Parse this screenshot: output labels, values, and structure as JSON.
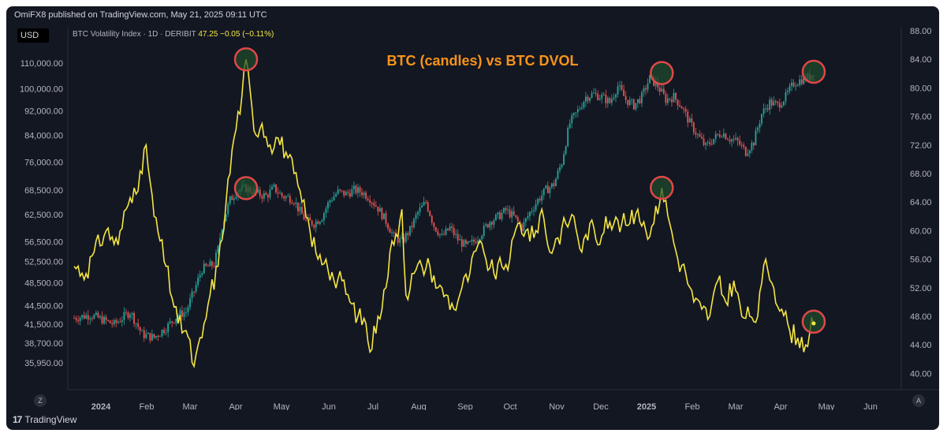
{
  "header": {
    "published": "OmiFX8 published on TradingView.com, May 21, 2025 09:11 UTC",
    "currency": "USD",
    "legend_name": "BTC Volatility Index · 1D · DERIBIT",
    "legend_values": "47.25 −0.05 (−0.11%)"
  },
  "footer": {
    "brand": "TradingView",
    "left_button": "Z",
    "right_button": "A"
  },
  "chart_data": {
    "type": "line",
    "title": "BTC (candles) vs BTC DVOL",
    "left_axis": {
      "ticks": [
        "110,000.00",
        "100,000.00",
        "92,000.00",
        "84,000.00",
        "76,000.00",
        "68,500.00",
        "62,500.00",
        "56,500.00",
        "52,500.00",
        "48,500.00",
        "44,500.00",
        "41,500.00",
        "38,700.00",
        "35,950.00"
      ],
      "scale": "log"
    },
    "right_axis": {
      "ticks": [
        "88.00",
        "84.00",
        "80.00",
        "76.00",
        "72.00",
        "68.00",
        "64.00",
        "60.00",
        "56.00",
        "52.00",
        "48.00",
        "44.00",
        "40.00"
      ],
      "range": [
        38,
        88
      ]
    },
    "x_ticks": [
      "2024",
      "Feb",
      "Mar",
      "Apr",
      "May",
      "Jun",
      "Jul",
      "Aug",
      "Sep",
      "Oct",
      "Nov",
      "Dec",
      "2025",
      "Feb",
      "Mar",
      "Apr",
      "May",
      "Jun"
    ],
    "series": [
      {
        "name": "BTC",
        "kind": "candles",
        "colors": {
          "up": "#26a69a",
          "down": "#ef5350"
        },
        "points": [
          [
            0,
            42500
          ],
          [
            4,
            43000
          ],
          [
            8,
            42000
          ],
          [
            10,
            41500
          ],
          [
            14,
            43500
          ],
          [
            17,
            40000
          ],
          [
            20,
            39500
          ],
          [
            23,
            41000
          ],
          [
            26,
            43000
          ],
          [
            28,
            43500
          ],
          [
            30,
            47000
          ],
          [
            32,
            51000
          ],
          [
            35,
            52000
          ],
          [
            36,
            55000
          ],
          [
            37,
            60000
          ],
          [
            39,
            66000
          ],
          [
            41,
            68500
          ],
          [
            43,
            69000
          ],
          [
            46,
            67500
          ],
          [
            48,
            67000
          ],
          [
            50,
            69000
          ],
          [
            52,
            67000
          ],
          [
            54,
            66500
          ],
          [
            55,
            66000
          ],
          [
            56,
            64000
          ],
          [
            58,
            61000
          ],
          [
            60,
            60500
          ],
          [
            62,
            62000
          ],
          [
            64,
            66000
          ],
          [
            66,
            68000
          ],
          [
            68,
            67500
          ],
          [
            70,
            68500
          ],
          [
            72,
            68000
          ],
          [
            74,
            66500
          ],
          [
            76,
            64000
          ],
          [
            78,
            61000
          ],
          [
            80,
            57500
          ],
          [
            82,
            56500
          ],
          [
            84,
            59000
          ],
          [
            86,
            63000
          ],
          [
            88,
            65500
          ],
          [
            90,
            60000
          ],
          [
            92,
            57500
          ],
          [
            94,
            59500
          ],
          [
            96,
            57000
          ],
          [
            98,
            55500
          ],
          [
            100,
            56500
          ],
          [
            102,
            58500
          ],
          [
            104,
            61000
          ],
          [
            106,
            62000
          ],
          [
            108,
            63500
          ],
          [
            110,
            62000
          ],
          [
            112,
            59500
          ],
          [
            114,
            63000
          ],
          [
            116,
            66000
          ],
          [
            118,
            68500
          ],
          [
            120,
            70000
          ],
          [
            122,
            76000
          ],
          [
            124,
            88000
          ],
          [
            126,
            92000
          ],
          [
            128,
            97000
          ],
          [
            130,
            98000
          ],
          [
            132,
            97000
          ],
          [
            134,
            95000
          ],
          [
            136,
            101000
          ],
          [
            138,
            96000
          ],
          [
            140,
            94000
          ],
          [
            142,
            97000
          ],
          [
            144,
            104000
          ],
          [
            146,
            101000
          ],
          [
            148,
            96000
          ],
          [
            150,
            97000
          ],
          [
            152,
            93500
          ],
          [
            154,
            88000
          ],
          [
            156,
            84000
          ],
          [
            158,
            80500
          ],
          [
            160,
            83000
          ],
          [
            162,
            85000
          ],
          [
            164,
            83000
          ],
          [
            166,
            82000
          ],
          [
            168,
            79000
          ],
          [
            170,
            82000
          ],
          [
            172,
            91000
          ],
          [
            174,
            95000
          ],
          [
            176,
            94000
          ],
          [
            178,
            97000
          ],
          [
            180,
            102000
          ],
          [
            182,
            103500
          ],
          [
            184,
            104500
          ],
          [
            185,
            106500
          ]
        ]
      },
      {
        "name": "BTC DVOL",
        "kind": "line",
        "color": "#f5e642",
        "points": [
          [
            0,
            55
          ],
          [
            3,
            54
          ],
          [
            5,
            57
          ],
          [
            8,
            60
          ],
          [
            11,
            58
          ],
          [
            13,
            63
          ],
          [
            15,
            66
          ],
          [
            17,
            68
          ],
          [
            18,
            72
          ],
          [
            20,
            62
          ],
          [
            23,
            55
          ],
          [
            26,
            47
          ],
          [
            28,
            46
          ],
          [
            30,
            41
          ],
          [
            32,
            45
          ],
          [
            34,
            51
          ],
          [
            36,
            55
          ],
          [
            38,
            64
          ],
          [
            40,
            73
          ],
          [
            42,
            79
          ],
          [
            43,
            84
          ],
          [
            45,
            74
          ],
          [
            47,
            75
          ],
          [
            49,
            72
          ],
          [
            51,
            73
          ],
          [
            53,
            71
          ],
          [
            55,
            68
          ],
          [
            57,
            64
          ],
          [
            59,
            60
          ],
          [
            61,
            56
          ],
          [
            63,
            56
          ],
          [
            65,
            53
          ],
          [
            67,
            53
          ],
          [
            69,
            50
          ],
          [
            71,
            48
          ],
          [
            73,
            47
          ],
          [
            74,
            43
          ],
          [
            76,
            48
          ],
          [
            78,
            52
          ],
          [
            79,
            57
          ],
          [
            80,
            58
          ],
          [
            82,
            63
          ],
          [
            83,
            51
          ],
          [
            85,
            54
          ],
          [
            87,
            55
          ],
          [
            89,
            55
          ],
          [
            91,
            52
          ],
          [
            93,
            51
          ],
          [
            95,
            49
          ],
          [
            97,
            52
          ],
          [
            99,
            54
          ],
          [
            101,
            58
          ],
          [
            103,
            56
          ],
          [
            105,
            54
          ],
          [
            107,
            55
          ],
          [
            109,
            56
          ],
          [
            111,
            61
          ],
          [
            113,
            60
          ],
          [
            115,
            59
          ],
          [
            117,
            63
          ],
          [
            119,
            57
          ],
          [
            121,
            59
          ],
          [
            123,
            61
          ],
          [
            125,
            62
          ],
          [
            127,
            57
          ],
          [
            129,
            61
          ],
          [
            131,
            58
          ],
          [
            133,
            62
          ],
          [
            135,
            61
          ],
          [
            137,
            61
          ],
          [
            139,
            61
          ],
          [
            141,
            63
          ],
          [
            143,
            60
          ],
          [
            145,
            61
          ],
          [
            147,
            66
          ],
          [
            149,
            61
          ],
          [
            151,
            56
          ],
          [
            153,
            54
          ],
          [
            155,
            50
          ],
          [
            157,
            49
          ],
          [
            159,
            48
          ],
          [
            161,
            53
          ],
          [
            163,
            50
          ],
          [
            165,
            53
          ],
          [
            167,
            48
          ],
          [
            169,
            48
          ],
          [
            171,
            48
          ],
          [
            173,
            56
          ],
          [
            175,
            52
          ],
          [
            177,
            49
          ],
          [
            179,
            46
          ],
          [
            181,
            45
          ],
          [
            183,
            44
          ],
          [
            185,
            47
          ]
        ]
      }
    ],
    "annotations": [
      {
        "series": "BTC DVOL",
        "x": 43,
        "value": 84,
        "label": ""
      },
      {
        "series": "BTC",
        "x": 43,
        "value": 69000,
        "label": ""
      },
      {
        "series": "BTC",
        "x": 147,
        "value": 106000,
        "label": ""
      },
      {
        "series": "BTC DVOL",
        "x": 147,
        "value": 66,
        "label": ""
      },
      {
        "series": "BTC",
        "x": 185,
        "value": 106500,
        "label": ""
      },
      {
        "series": "BTC DVOL",
        "x": 185,
        "value": 47.25,
        "label": ""
      }
    ],
    "colors": {
      "background": "#131722",
      "title": "#f7931a",
      "annotation_circle": "#e04848",
      "annotation_fill": "#1e4d2b"
    }
  }
}
